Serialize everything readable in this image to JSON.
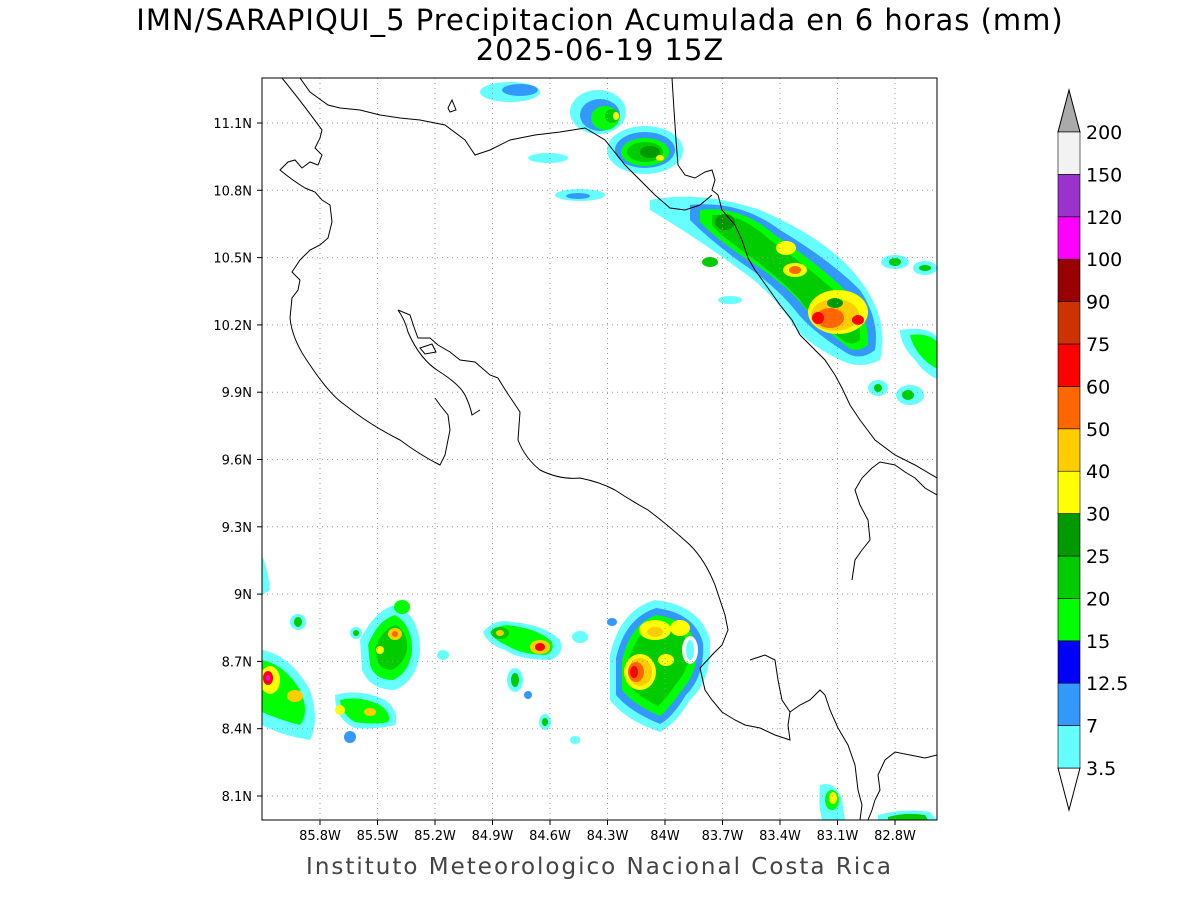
{
  "title_line1": "IMN/SARAPIQUI_5 Precipitacion Acumulada en 6 horas (mm)",
  "title_line2": "2025-06-19 15Z",
  "footer": "Instituto Meteorologico Nacional Costa Rica",
  "map": {
    "lon_ticks": [
      "85.8W",
      "85.5W",
      "85.2W",
      "84.9W",
      "84.6W",
      "84.3W",
      "84W",
      "83.7W",
      "83.4W",
      "83.1W",
      "82.8W"
    ],
    "lat_ticks": [
      "11.1N",
      "10.8N",
      "10.5N",
      "10.2N",
      "9.9N",
      "9.6N",
      "9.3N",
      "9N",
      "8.7N",
      "8.4N",
      "8.1N"
    ],
    "grid": "dotted"
  },
  "colorbar": {
    "labels": [
      "3.5",
      "7",
      "12.5",
      "15",
      "20",
      "25",
      "30",
      "40",
      "50",
      "60",
      "75",
      "90",
      "100",
      "120",
      "150",
      "200"
    ],
    "colors": [
      "#66ffff",
      "#3399ff",
      "#0000ff",
      "#00ff00",
      "#00cc00",
      "#009900",
      "#ffff00",
      "#ffcc00",
      "#ff6600",
      "#ff0000",
      "#cc3300",
      "#990000",
      "#ff00ff",
      "#9933cc",
      "#f2f2f2"
    ],
    "over_color": "#aaaaaa",
    "under_color": "#ffffff"
  }
}
